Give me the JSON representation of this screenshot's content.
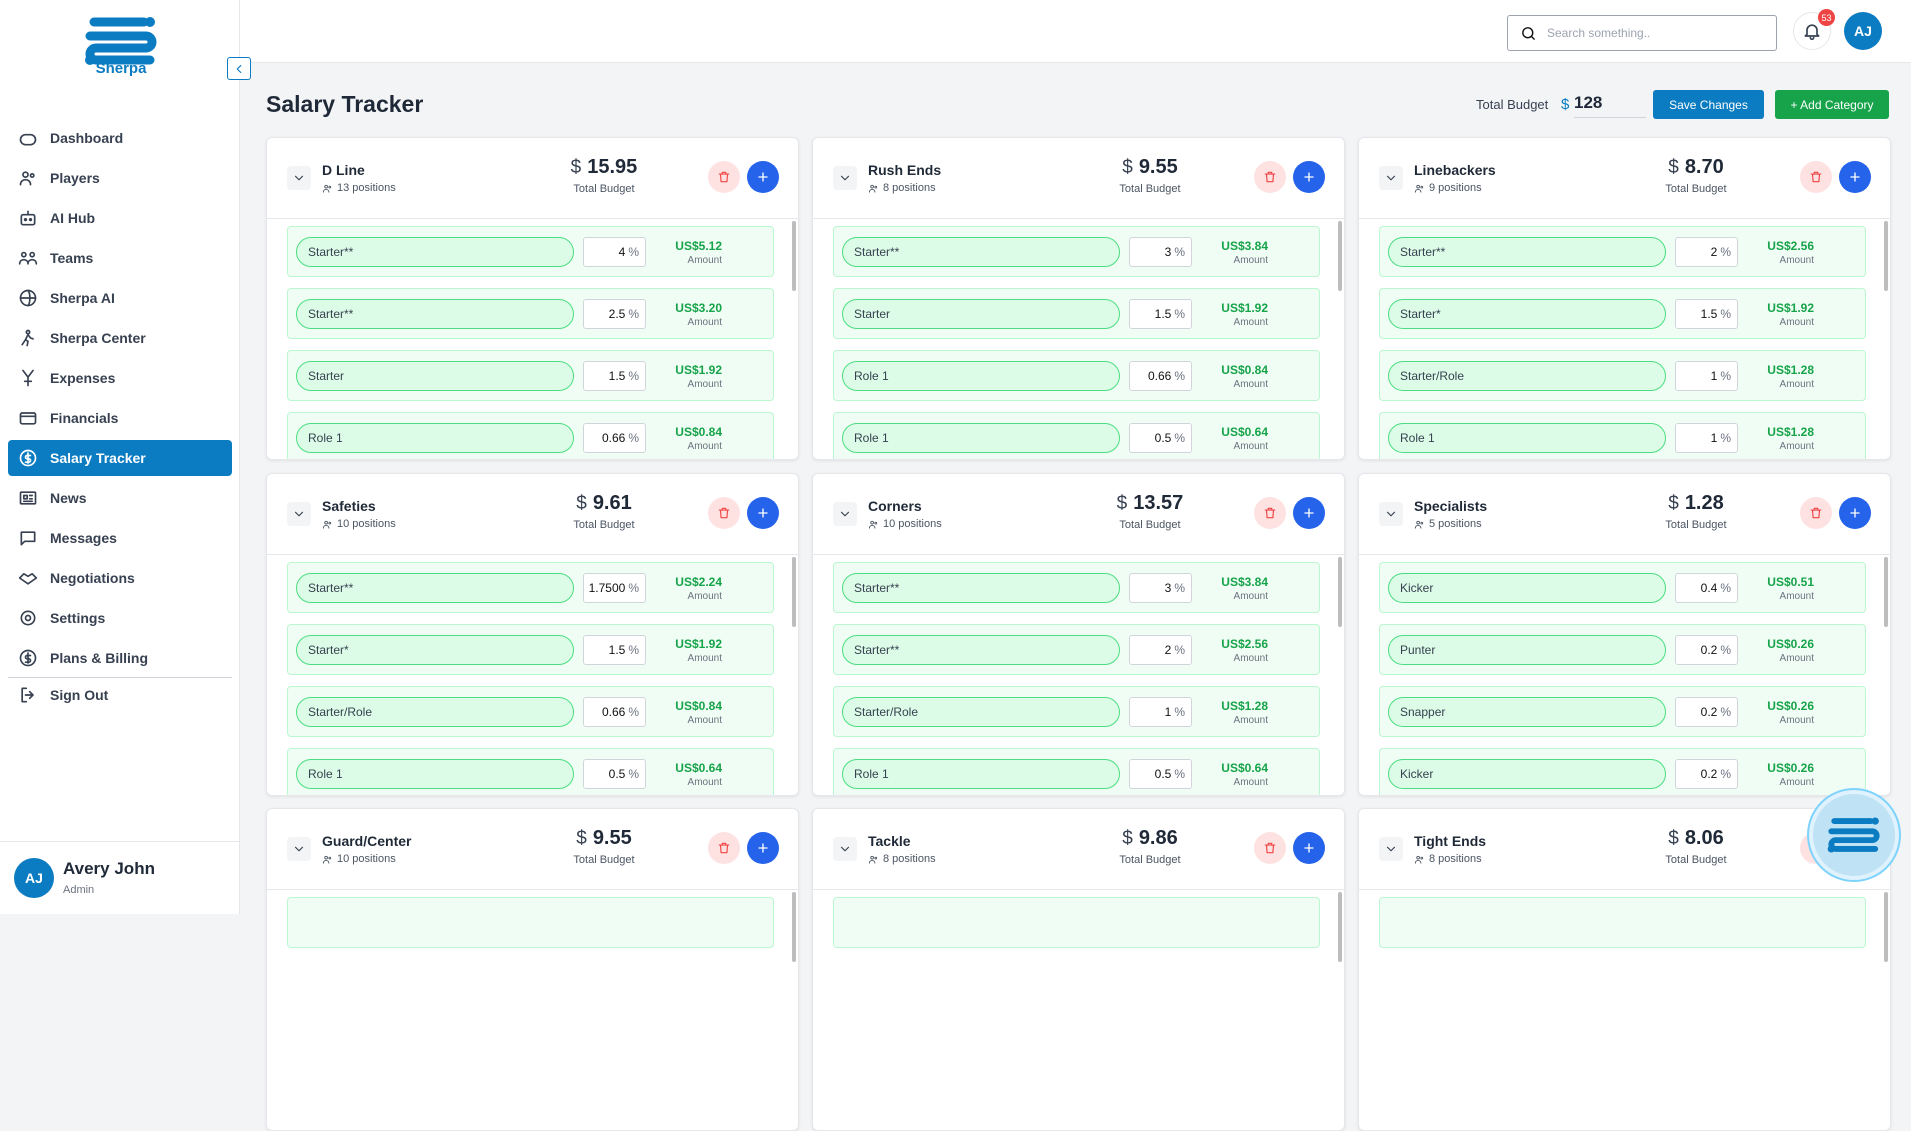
{
  "sidebar": {
    "logo": "Sherpa",
    "nav": [
      "Dashboard",
      "Players",
      "AI Hub",
      "Teams",
      "Sherpa AI",
      "Sherpa Center",
      "Expenses",
      "Financials",
      "Salary Tracker",
      "News",
      "Messages",
      "Negotiations",
      "Settings",
      "Plans & Billing"
    ],
    "active_index": 8,
    "sign_out": "Sign Out"
  },
  "user": {
    "initials": "AJ",
    "name": "Avery John",
    "role": "Admin"
  },
  "header": {
    "search_placeholder": "Search something..",
    "notification_count": "53",
    "avatar": "AJ"
  },
  "page": {
    "title": "Salary Tracker",
    "total_budget_label": "Total Budget",
    "currency": "$",
    "total_budget": "128",
    "save_button": "Save Changes",
    "add_button": "+ Add Category",
    "card_budget_label": "Total Budget",
    "percent_unit": "%",
    "amount_label": "Amount"
  },
  "cards": [
    {
      "name": "D Line",
      "positions": "13 positions",
      "budget": "15.95",
      "items": [
        {
          "role": "Starter**",
          "percent": "4",
          "amount": "US$5.12"
        },
        {
          "role": "Starter**",
          "percent": "2.5",
          "amount": "US$3.20"
        },
        {
          "role": "Starter",
          "percent": "1.5",
          "amount": "US$1.92"
        },
        {
          "role": "Role 1",
          "percent": "0.66",
          "amount": "US$0.84"
        }
      ]
    },
    {
      "name": "Rush Ends",
      "positions": "8 positions",
      "budget": "9.55",
      "items": [
        {
          "role": "Starter**",
          "percent": "3",
          "amount": "US$3.84"
        },
        {
          "role": "Starter",
          "percent": "1.5",
          "amount": "US$1.92"
        },
        {
          "role": "Role 1",
          "percent": "0.66",
          "amount": "US$0.84"
        },
        {
          "role": "Role 1",
          "percent": "0.5",
          "amount": "US$0.64"
        }
      ]
    },
    {
      "name": "Linebackers",
      "positions": "9 positions",
      "budget": "8.70",
      "items": [
        {
          "role": "Starter**",
          "percent": "2",
          "amount": "US$2.56"
        },
        {
          "role": "Starter*",
          "percent": "1.5",
          "amount": "US$1.92"
        },
        {
          "role": "Starter/Role",
          "percent": "1",
          "amount": "US$1.28"
        },
        {
          "role": "Role 1",
          "percent": "1",
          "amount": "US$1.28"
        }
      ]
    },
    {
      "name": "Safeties",
      "positions": "10 positions",
      "budget": "9.61",
      "items": [
        {
          "role": "Starter**",
          "percent": "1.7500",
          "amount": "US$2.24"
        },
        {
          "role": "Starter*",
          "percent": "1.5",
          "amount": "US$1.92"
        },
        {
          "role": "Starter/Role",
          "percent": "0.66",
          "amount": "US$0.84"
        },
        {
          "role": "Role 1",
          "percent": "0.5",
          "amount": "US$0.64"
        }
      ]
    },
    {
      "name": "Corners",
      "positions": "10 positions",
      "budget": "13.57",
      "items": [
        {
          "role": "Starter**",
          "percent": "3",
          "amount": "US$3.84"
        },
        {
          "role": "Starter**",
          "percent": "2",
          "amount": "US$2.56"
        },
        {
          "role": "Starter/Role",
          "percent": "1",
          "amount": "US$1.28"
        },
        {
          "role": "Role 1",
          "percent": "0.5",
          "amount": "US$0.64"
        }
      ]
    },
    {
      "name": "Specialists",
      "positions": "5 positions",
      "budget": "1.28",
      "items": [
        {
          "role": "Kicker",
          "percent": "0.4",
          "amount": "US$0.51"
        },
        {
          "role": "Punter",
          "percent": "0.2",
          "amount": "US$0.26"
        },
        {
          "role": "Snapper",
          "percent": "0.2",
          "amount": "US$0.26"
        },
        {
          "role": "Kicker",
          "percent": "0.2",
          "amount": "US$0.26"
        }
      ]
    },
    {
      "name": "Guard/Center",
      "positions": "10 positions",
      "budget": "9.55",
      "items": []
    },
    {
      "name": "Tackle",
      "positions": "8 positions",
      "budget": "9.86",
      "items": []
    },
    {
      "name": "Tight Ends",
      "positions": "8 positions",
      "budget": "8.06",
      "items": []
    }
  ]
}
